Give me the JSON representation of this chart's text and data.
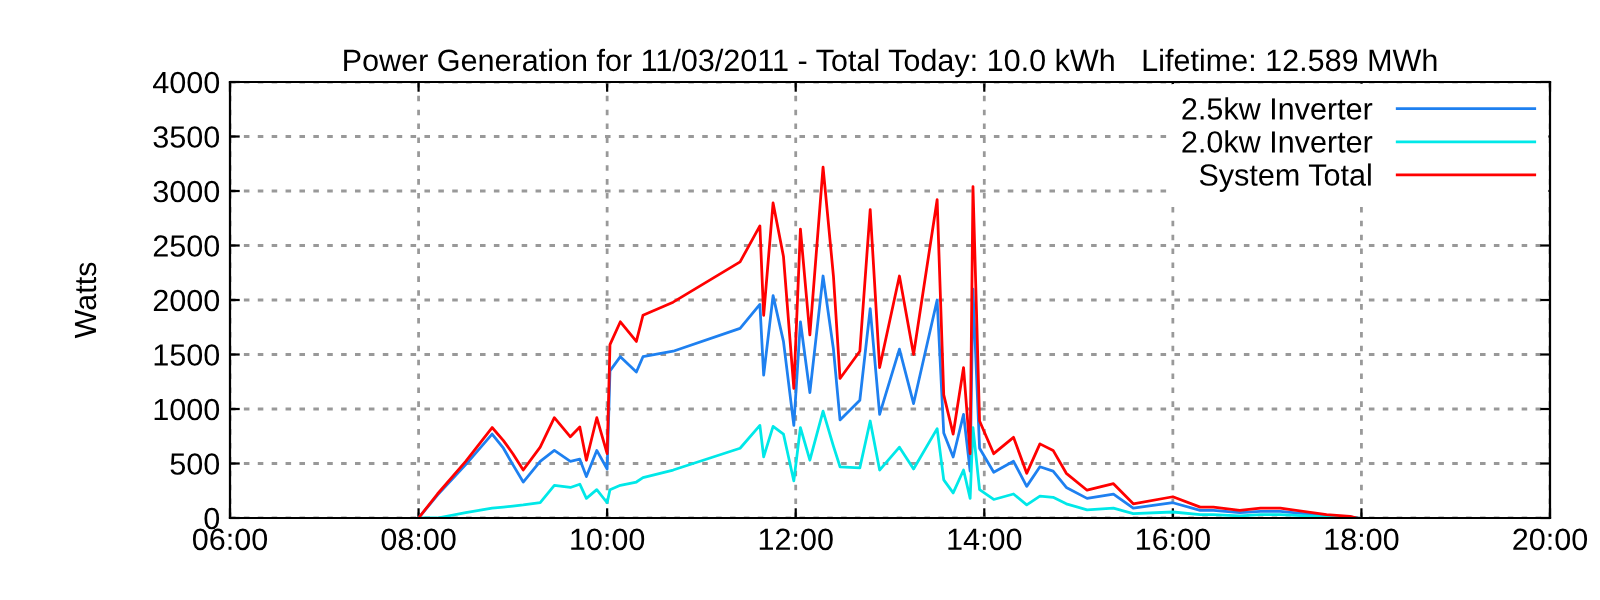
{
  "chart_data": {
    "type": "line",
    "title": "Power Generation for 11/03/2011 - Total Today: 10.0 kWh   Lifetime: 12.589 MWh",
    "ylabel": "Watts",
    "x": [
      8.0,
      8.2,
      8.5,
      8.78,
      8.9,
      9.0,
      9.11,
      9.29,
      9.44,
      9.61,
      9.71,
      9.78,
      9.89,
      10.0,
      10.03,
      10.14,
      10.31,
      10.38,
      10.7,
      11.41,
      11.62,
      11.66,
      11.76,
      11.87,
      11.98,
      12.05,
      12.15,
      12.29,
      12.4,
      12.47,
      12.68,
      12.79,
      12.89,
      13.1,
      13.25,
      13.5,
      13.57,
      13.67,
      13.78,
      13.85,
      13.88,
      13.95,
      14.1,
      14.31,
      14.45,
      14.59,
      14.73,
      14.87,
      15.09,
      15.37,
      15.58,
      16.0,
      16.29,
      16.43,
      16.71,
      16.93,
      17.14,
      17.63,
      17.88,
      17.95
    ],
    "series": [
      {
        "name": "2.5kw Inverter",
        "color": "#1e80f0",
        "values": [
          0,
          210,
          490,
          770,
          640,
          490,
          330,
          520,
          620,
          520,
          540,
          380,
          620,
          450,
          1350,
          1480,
          1340,
          1480,
          1530,
          1740,
          1960,
          1310,
          2040,
          1620,
          850,
          1800,
          1150,
          2220,
          1550,
          900,
          1080,
          1920,
          950,
          1550,
          1050,
          2000,
          780,
          560,
          950,
          430,
          2100,
          640,
          420,
          520,
          290,
          470,
          430,
          280,
          180,
          220,
          90,
          140,
          70,
          70,
          50,
          60,
          60,
          20,
          10,
          0
        ]
      },
      {
        "name": "2.0kw Inverter",
        "color": "#00e8e8",
        "values": [
          0,
          0,
          50,
          90,
          100,
          110,
          120,
          140,
          300,
          280,
          310,
          180,
          260,
          140,
          260,
          300,
          330,
          370,
          440,
          640,
          850,
          560,
          840,
          770,
          340,
          830,
          530,
          980,
          660,
          470,
          460,
          890,
          440,
          650,
          450,
          820,
          350,
          230,
          440,
          180,
          830,
          260,
          170,
          220,
          120,
          200,
          190,
          130,
          75,
          90,
          40,
          55,
          30,
          30,
          20,
          30,
          30,
          10,
          5,
          0
        ]
      },
      {
        "name": "System Total",
        "color": "#ff0000",
        "values": [
          0,
          220,
          520,
          830,
          710,
          590,
          440,
          650,
          920,
          745,
          835,
          530,
          920,
          590,
          1590,
          1800,
          1620,
          1860,
          1980,
          2350,
          2680,
          1860,
          2890,
          2400,
          1190,
          2650,
          1680,
          3220,
          2220,
          1280,
          1530,
          2830,
          1380,
          2220,
          1500,
          2920,
          1130,
          770,
          1380,
          590,
          3040,
          890,
          590,
          740,
          410,
          680,
          620,
          410,
          255,
          315,
          130,
          195,
          100,
          100,
          70,
          90,
          90,
          30,
          15,
          0
        ]
      }
    ],
    "xlim": [
      6,
      20
    ],
    "xticks": [
      {
        "value": 6,
        "label": "06:00"
      },
      {
        "value": 8,
        "label": "08:00"
      },
      {
        "value": 10,
        "label": "10:00"
      },
      {
        "value": 12,
        "label": "12:00"
      },
      {
        "value": 14,
        "label": "14:00"
      },
      {
        "value": 16,
        "label": "16:00"
      },
      {
        "value": 18,
        "label": "18:00"
      },
      {
        "value": 20,
        "label": "20:00"
      }
    ],
    "ylim": [
      0,
      4000
    ],
    "yticks": [
      0,
      500,
      1000,
      1500,
      2000,
      2500,
      3000,
      3500,
      4000
    ],
    "grid": true,
    "legend": "top right",
    "line_style": "solid"
  }
}
